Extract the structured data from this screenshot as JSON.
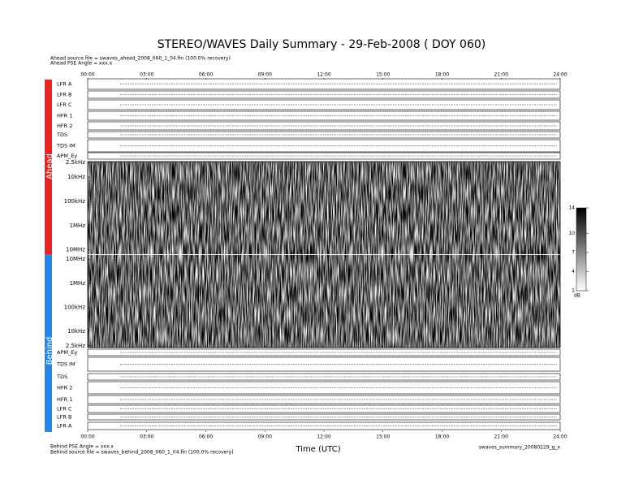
{
  "chart_data": {
    "type": "spectrogram",
    "title": "STEREO/WAVES Daily Summary - 29-Feb-2008 ( DOY 060)",
    "header": [
      "Ahead source file = swaves_ahead_2008_060_1_04.fin (100.0% recovery)",
      "Ahead PSE Angle = xxx.x"
    ],
    "footer": [
      "Behind PSE Angle = xxx.x",
      "Behind source file = swaves_behind_2008_060_1_04.fin (100.0% recovery)"
    ],
    "product": "swaves_summary_20080229_g_x",
    "xlabel": "Time (UTC)",
    "xlim": [
      0,
      24
    ],
    "xticks": [
      {
        "value": 0,
        "label": "00:00"
      },
      {
        "value": 3,
        "label": "03:00"
      },
      {
        "value": 6,
        "label": "06:00"
      },
      {
        "value": 9,
        "label": "09:00"
      },
      {
        "value": 12,
        "label": "12:00"
      },
      {
        "value": 15,
        "label": "15:00"
      },
      {
        "value": 18,
        "label": "18:00"
      },
      {
        "value": 21,
        "label": "21:00"
      },
      {
        "value": 24,
        "label": "24:00"
      }
    ],
    "ahead": {
      "name": "Ahead",
      "color": "#ee2222",
      "rows": [
        "LFR A",
        "LFR B",
        "LFR C",
        "HFR 1",
        "HFR 2",
        "TDS",
        "TDS IM",
        "APM_Ey"
      ],
      "log_scale": true,
      "ylim": [
        15000000,
        2300
      ],
      "yticks": [
        {
          "value": 2500,
          "label": "2.5kHz"
        },
        {
          "value": 10000,
          "label": "10kHz"
        },
        {
          "value": 100000,
          "label": "100kHz"
        },
        {
          "value": 1000000,
          "label": "1MHz"
        },
        {
          "value": 10000000,
          "label": "10MHz"
        }
      ]
    },
    "behind": {
      "name": "Behind",
      "color": "#2288ee",
      "rows": [
        "APM_Ey",
        "TDS IM",
        "TDS",
        "HFR 2",
        "HFR 1",
        "LFR C",
        "LFR B",
        "LFR A"
      ],
      "log_scale": true,
      "ylim": [
        2100,
        15000000
      ],
      "yticks": [
        {
          "value": 10000000,
          "label": "10MHz"
        },
        {
          "value": 1000000,
          "label": "1MHz"
        },
        {
          "value": 100000,
          "label": "100kHz"
        },
        {
          "value": 10000,
          "label": "10kHz"
        },
        {
          "value": 2500,
          "label": "2.5kHz"
        }
      ]
    },
    "colorbar": {
      "label": "dB",
      "lim": [
        1,
        14
      ],
      "ticks": [
        14,
        10,
        7,
        4,
        1
      ]
    }
  }
}
